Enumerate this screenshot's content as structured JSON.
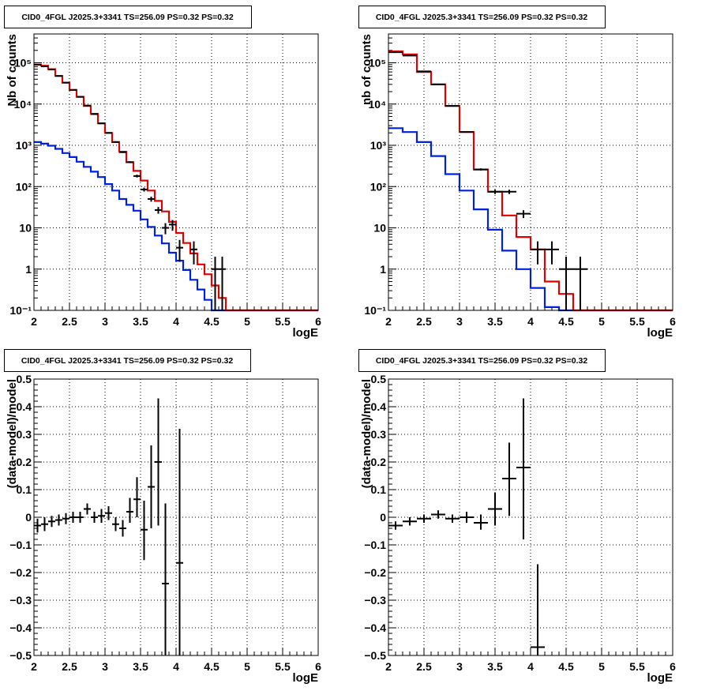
{
  "colors": {
    "data": "#000000",
    "total_model": "#e00000",
    "component": "#0020e0",
    "grid": "#000000",
    "frame": "#000000",
    "title_box_fill": "#ffffff"
  },
  "chart_data": [
    {
      "id": "counts-left",
      "type": "line",
      "title": "CID0_4FGL J2025.3+3341 TS=256.09 PS=0.32 PS=0.32",
      "xlabel": "logE",
      "ylabel": "Nb of counts",
      "xlim": [
        2,
        6
      ],
      "ylim": [
        0.1,
        500000
      ],
      "yscale": "log",
      "grid": true,
      "xticks": [
        2,
        2.5,
        3,
        3.5,
        4,
        4.5,
        5,
        5.5,
        6
      ],
      "xtick_labels": [
        "2",
        "2.5",
        "3",
        "3.5",
        "4",
        "4.5",
        "5",
        "5.5",
        "6"
      ],
      "yticks": [
        0.1,
        1,
        10,
        100,
        1000,
        10000,
        100000
      ],
      "ytick_labels": [
        "10⁻¹",
        "1",
        "10",
        "10²",
        "10³",
        "10⁴",
        "10⁵"
      ],
      "bin_edges": [
        2.0,
        2.1,
        2.2,
        2.3,
        2.4,
        2.5,
        2.6,
        2.7,
        2.8,
        2.9,
        3.0,
        3.1,
        3.2,
        3.3,
        3.4,
        3.5,
        3.6,
        3.7,
        3.8,
        3.9,
        4.0,
        4.1,
        4.2,
        4.3,
        4.4,
        4.5,
        4.6,
        4.7,
        4.8,
        4.9,
        5.0,
        5.1,
        5.2,
        5.3,
        5.4,
        5.5,
        5.6,
        5.7,
        5.8,
        5.9,
        6.0
      ],
      "series": [
        {
          "key": "total",
          "style": "step",
          "values": [
            90000,
            85000,
            70000,
            48000,
            33000,
            22000,
            15000,
            9000,
            5800,
            3400,
            2000,
            1200,
            700,
            390,
            240,
            140,
            80,
            45,
            25,
            14,
            7.5,
            4.3,
            2.4,
            1.3,
            0.75,
            0.4,
            0.2,
            0.1,
            0.1,
            0.1,
            0.1,
            0.1,
            0.1,
            0.1,
            0.1,
            0.1,
            0.1,
            0.1,
            0.1,
            0.1
          ]
        },
        {
          "key": "component",
          "style": "step",
          "values": [
            1200,
            1100,
            980,
            820,
            650,
            520,
            400,
            300,
            230,
            170,
            115,
            80,
            50,
            36,
            26,
            16,
            10.5,
            6.5,
            4.2,
            2.5,
            1.6,
            0.95,
            0.55,
            0.32,
            0.18,
            0.1,
            0.1,
            0.1,
            0.1,
            0.1,
            0.1,
            0.1,
            0.1,
            0.1,
            0.1,
            0.1,
            0.1,
            0.1,
            0.1,
            0.1
          ]
        },
        {
          "key": "data",
          "style": "errorbar",
          "points": [
            {
              "x": 2.05,
              "y": 90000,
              "lo": 89700,
              "hi": 90300
            },
            {
              "x": 2.15,
              "y": 82000,
              "lo": 81700,
              "hi": 82300
            },
            {
              "x": 2.25,
              "y": 69000,
              "lo": 68700,
              "hi": 69300
            },
            {
              "x": 2.35,
              "y": 48000,
              "lo": 47780,
              "hi": 48220
            },
            {
              "x": 2.45,
              "y": 33000,
              "lo": 32820,
              "hi": 33180
            },
            {
              "x": 2.55,
              "y": 22000,
              "lo": 21850,
              "hi": 22150
            },
            {
              "x": 2.65,
              "y": 15000,
              "lo": 14880,
              "hi": 15120
            },
            {
              "x": 2.75,
              "y": 9200,
              "lo": 9100,
              "hi": 9300
            },
            {
              "x": 2.85,
              "y": 5700,
              "lo": 5620,
              "hi": 5780
            },
            {
              "x": 2.95,
              "y": 3400,
              "lo": 3340,
              "hi": 3460
            },
            {
              "x": 3.05,
              "y": 2000,
              "lo": 1955,
              "hi": 2045
            },
            {
              "x": 3.15,
              "y": 1200,
              "lo": 1165,
              "hi": 1235
            },
            {
              "x": 3.25,
              "y": 680,
              "lo": 654,
              "hi": 706
            },
            {
              "x": 3.35,
              "y": 390,
              "lo": 370,
              "hi": 410
            },
            {
              "x": 3.45,
              "y": 180,
              "lo": 166,
              "hi": 194
            },
            {
              "x": 3.55,
              "y": 85,
              "lo": 76,
              "hi": 94
            },
            {
              "x": 3.65,
              "y": 50,
              "lo": 43,
              "hi": 57
            },
            {
              "x": 3.75,
              "y": 27,
              "lo": 22,
              "hi": 32
            },
            {
              "x": 3.85,
              "y": 10,
              "lo": 7,
              "hi": 13
            },
            {
              "x": 3.95,
              "y": 12,
              "lo": 8.5,
              "hi": 15.5
            },
            {
              "x": 4.05,
              "y": 3.3,
              "lo": 1.5,
              "hi": 5.1
            },
            {
              "x": 4.25,
              "y": 3,
              "lo": 1.3,
              "hi": 4.7
            },
            {
              "x": 4.55,
              "y": 1,
              "lo": 0.1,
              "hi": 2
            },
            {
              "x": 4.65,
              "y": 1,
              "lo": 0.1,
              "hi": 2
            }
          ]
        }
      ]
    },
    {
      "id": "counts-right",
      "type": "line",
      "title": "CID0_4FGL J2025.3+3341 TS=256.09 PS=0.32 PS=0.32",
      "xlabel": "logE",
      "ylabel": "nb of counts",
      "xlim": [
        2,
        6
      ],
      "ylim": [
        0.1,
        500000
      ],
      "yscale": "log",
      "grid": true,
      "xticks": [
        2,
        2.5,
        3,
        3.5,
        4,
        4.5,
        5,
        5.5,
        6
      ],
      "xtick_labels": [
        "2",
        "2.5",
        "3",
        "3.5",
        "4",
        "4.5",
        "5",
        "5.5",
        "6"
      ],
      "yticks": [
        0.1,
        1,
        10,
        100,
        1000,
        10000,
        100000
      ],
      "ytick_labels": [
        "10⁻¹",
        "1",
        "10",
        "10²",
        "10³",
        "10⁴",
        "10⁵"
      ],
      "bin_edges": [
        2.0,
        2.2,
        2.4,
        2.6,
        2.8,
        3.0,
        3.2,
        3.4,
        3.6,
        3.8,
        4.0,
        4.2,
        4.4,
        4.6,
        4.8,
        5.0,
        5.2,
        5.4,
        5.6,
        5.8,
        6.0
      ],
      "series": [
        {
          "key": "total",
          "style": "step",
          "values": [
            190000,
            160000,
            60000,
            30000,
            9000,
            2100,
            260,
            75,
            20,
            6,
            3,
            0.5,
            0.25,
            0.1,
            0.1,
            0.1,
            0.1,
            0.1,
            0.1,
            0.1
          ]
        },
        {
          "key": "component",
          "style": "step",
          "values": [
            2600,
            2100,
            1200,
            550,
            200,
            80,
            28,
            9,
            2.8,
            1,
            0.35,
            0.12,
            0.1,
            0.1,
            0.1,
            0.1,
            0.1,
            0.1,
            0.1,
            0.1
          ]
        },
        {
          "key": "data",
          "style": "errorbar",
          "points": [
            {
              "x": 2.1,
              "y": 180000,
              "lo": 179600,
              "hi": 180400
            },
            {
              "x": 2.3,
              "y": 150000,
              "lo": 149600,
              "hi": 150400
            },
            {
              "x": 2.5,
              "y": 62000,
              "lo": 61750,
              "hi": 62250
            },
            {
              "x": 2.7,
              "y": 30000,
              "lo": 29830,
              "hi": 30170
            },
            {
              "x": 2.9,
              "y": 9000,
              "lo": 8905,
              "hi": 9095
            },
            {
              "x": 3.1,
              "y": 2100,
              "lo": 2054,
              "hi": 2146
            },
            {
              "x": 3.3,
              "y": 260,
              "lo": 244,
              "hi": 276
            },
            {
              "x": 3.5,
              "y": 75,
              "lo": 66,
              "hi": 84
            },
            {
              "x": 3.7,
              "y": 75,
              "lo": 66,
              "hi": 84
            },
            {
              "x": 3.9,
              "y": 22,
              "lo": 17.3,
              "hi": 26.7
            },
            {
              "x": 4.1,
              "y": 3,
              "lo": 1.3,
              "hi": 4.7
            },
            {
              "x": 4.3,
              "y": 3,
              "lo": 1.3,
              "hi": 4.7
            },
            {
              "x": 4.5,
              "y": 1,
              "lo": 0.1,
              "hi": 2
            },
            {
              "x": 4.7,
              "y": 1,
              "lo": 0.1,
              "hi": 2
            }
          ]
        }
      ]
    },
    {
      "id": "residual-left",
      "type": "scatter",
      "title": "CID0_4FGL J2025.3+3341 TS=256.09 PS=0.32 PS=0.32",
      "xlabel": "logE",
      "ylabel": "(data-model)/model",
      "xlim": [
        2,
        6
      ],
      "ylim": [
        -0.5,
        0.5
      ],
      "yscale": "linear",
      "grid": true,
      "xticks": [
        2,
        2.5,
        3,
        3.5,
        4,
        4.5,
        5,
        5.5,
        6
      ],
      "xtick_labels": [
        "2",
        "2.5",
        "3",
        "3.5",
        "4",
        "4.5",
        "5",
        "5.5",
        "6"
      ],
      "yticks": [
        -0.5,
        -0.4,
        -0.3,
        -0.2,
        -0.1,
        0,
        0.1,
        0.2,
        0.3,
        0.4,
        0.5
      ],
      "ytick_labels": [
        "−0.5",
        "−0.4",
        "−0.3",
        "−0.2",
        "−0.1",
        "0",
        "0.1",
        "0.2",
        "0.3",
        "0.4",
        "0.5"
      ],
      "series": [
        {
          "key": "data",
          "style": "errorbar",
          "xerr": 0.05,
          "points": [
            {
              "x": 2.05,
              "y": -0.03,
              "lo": -0.055,
              "hi": -0.005
            },
            {
              "x": 2.15,
              "y": -0.025,
              "lo": -0.05,
              "hi": 0
            },
            {
              "x": 2.25,
              "y": -0.015,
              "lo": -0.035,
              "hi": 0.005
            },
            {
              "x": 2.35,
              "y": -0.01,
              "lo": -0.03,
              "hi": 0.01
            },
            {
              "x": 2.45,
              "y": -0.005,
              "lo": -0.025,
              "hi": 0.015
            },
            {
              "x": 2.55,
              "y": 0,
              "lo": -0.02,
              "hi": 0.02
            },
            {
              "x": 2.65,
              "y": 0,
              "lo": -0.02,
              "hi": 0.02
            },
            {
              "x": 2.75,
              "y": 0.03,
              "lo": 0.01,
              "hi": 0.05
            },
            {
              "x": 2.85,
              "y": 0,
              "lo": -0.02,
              "hi": 0.02
            },
            {
              "x": 2.95,
              "y": 0.005,
              "lo": -0.02,
              "hi": 0.03
            },
            {
              "x": 3.05,
              "y": 0.015,
              "lo": -0.01,
              "hi": 0.04
            },
            {
              "x": 3.15,
              "y": -0.025,
              "lo": -0.05,
              "hi": 0
            },
            {
              "x": 3.25,
              "y": -0.04,
              "lo": -0.07,
              "hi": -0.01
            },
            {
              "x": 3.35,
              "y": 0.02,
              "lo": -0.02,
              "hi": 0.07
            },
            {
              "x": 3.45,
              "y": 0.065,
              "lo": 0,
              "hi": 0.145
            },
            {
              "x": 3.55,
              "y": -0.045,
              "lo": -0.155,
              "hi": 0.06
            },
            {
              "x": 3.65,
              "y": 0.11,
              "lo": -0.04,
              "hi": 0.26
            },
            {
              "x": 3.75,
              "y": 0.2,
              "lo": -0.03,
              "hi": 0.43
            },
            {
              "x": 3.85,
              "y": -0.24,
              "lo": -0.5,
              "hi": 0.05
            },
            {
              "x": 4.05,
              "y": -0.165,
              "lo": -0.5,
              "hi": 0.32
            }
          ]
        }
      ]
    },
    {
      "id": "residual-right",
      "type": "scatter",
      "title": "CID0_4FGL J2025.3+3341 TS=256.09 PS=0.32 PS=0.32",
      "xlabel": "logE",
      "ylabel": "(data-model)/model",
      "xlim": [
        2,
        6
      ],
      "ylim": [
        -0.5,
        0.5
      ],
      "yscale": "linear",
      "grid": true,
      "xticks": [
        2,
        2.5,
        3,
        3.5,
        4,
        4.5,
        5,
        5.5,
        6
      ],
      "xtick_labels": [
        "2",
        "2.5",
        "3",
        "3.5",
        "4",
        "4.5",
        "5",
        "5.5",
        "6"
      ],
      "yticks": [
        -0.5,
        -0.4,
        -0.3,
        -0.2,
        -0.1,
        0,
        0.1,
        0.2,
        0.3,
        0.4,
        0.5
      ],
      "ytick_labels": [
        "−0.5",
        "−0.4",
        "−0.3",
        "−0.2",
        "−0.1",
        "0",
        "0.1",
        "0.2",
        "0.3",
        "0.4",
        "0.5"
      ],
      "series": [
        {
          "key": "data",
          "style": "errorbar",
          "xerr": 0.1,
          "points": [
            {
              "x": 2.1,
              "y": -0.03,
              "lo": -0.045,
              "hi": -0.015
            },
            {
              "x": 2.3,
              "y": -0.015,
              "lo": -0.03,
              "hi": 0
            },
            {
              "x": 2.5,
              "y": -0.005,
              "lo": -0.02,
              "hi": 0.01
            },
            {
              "x": 2.7,
              "y": 0.01,
              "lo": -0.005,
              "hi": 0.025
            },
            {
              "x": 2.9,
              "y": -0.005,
              "lo": -0.02,
              "hi": 0.01
            },
            {
              "x": 3.1,
              "y": 0,
              "lo": -0.02,
              "hi": 0.02
            },
            {
              "x": 3.3,
              "y": -0.02,
              "lo": -0.045,
              "hi": 0.01
            },
            {
              "x": 3.5,
              "y": 0.03,
              "lo": -0.03,
              "hi": 0.09
            },
            {
              "x": 3.7,
              "y": 0.14,
              "lo": 0.005,
              "hi": 0.27
            },
            {
              "x": 3.9,
              "y": 0.18,
              "lo": -0.08,
              "hi": 0.43
            },
            {
              "x": 4.1,
              "y": -0.47,
              "lo": -0.5,
              "hi": -0.17
            }
          ]
        }
      ]
    }
  ]
}
